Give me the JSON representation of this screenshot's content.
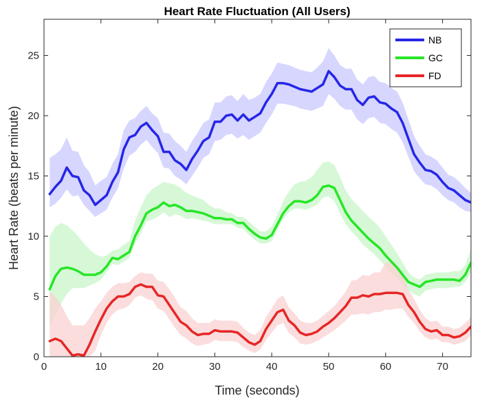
{
  "chart_data": {
    "type": "line",
    "title": "Heart Rate Fluctuation (All Users)",
    "xlabel": "Time (seconds)",
    "ylabel": "Heart Rate (beats per minute)",
    "xlim": [
      0,
      75
    ],
    "ylim": [
      0,
      28
    ],
    "xticks": [
      0,
      10,
      20,
      30,
      40,
      50,
      60,
      70
    ],
    "yticks": [
      0,
      5,
      10,
      15,
      20,
      25
    ],
    "grid": false,
    "legend_position": "top-right",
    "x": [
      1,
      2,
      3,
      4,
      5,
      6,
      7,
      8,
      9,
      10,
      11,
      12,
      13,
      14,
      15,
      16,
      17,
      18,
      19,
      20,
      21,
      22,
      23,
      24,
      25,
      26,
      27,
      28,
      29,
      30,
      31,
      32,
      33,
      34,
      35,
      36,
      37,
      38,
      39,
      40,
      41,
      42,
      43,
      44,
      45,
      46,
      47,
      48,
      49,
      50,
      51,
      52,
      53,
      54,
      55,
      56,
      57,
      58,
      59,
      60,
      61,
      62,
      63,
      64,
      65,
      66,
      67,
      68,
      69,
      70,
      71,
      72,
      73,
      74,
      75
    ],
    "series": [
      {
        "name": "NB",
        "color": "#2626e6",
        "band_color": "#c8c8ff",
        "values": [
          13.5,
          14.1,
          14.6,
          15.7,
          15.0,
          14.9,
          13.8,
          13.4,
          12.6,
          13.0,
          13.4,
          14.5,
          15.3,
          17.2,
          18.2,
          18.4,
          19.1,
          19.4,
          18.8,
          18.3,
          17.0,
          17.0,
          16.3,
          16.0,
          15.5,
          16.4,
          17.1,
          17.9,
          18.2,
          19.5,
          19.5,
          20.0,
          20.1,
          19.6,
          20.1,
          19.6,
          19.9,
          20.2,
          21.1,
          21.8,
          22.7,
          22.7,
          22.6,
          22.4,
          22.2,
          22.1,
          22.0,
          22.3,
          22.6,
          23.7,
          23.2,
          22.5,
          22.2,
          22.2,
          21.3,
          20.9,
          21.5,
          21.6,
          21.1,
          21.0,
          20.6,
          20.3,
          19.4,
          18.1,
          16.8,
          16.1,
          15.5,
          15.4,
          15.1,
          14.5,
          14.0,
          13.8,
          13.4,
          13.0,
          12.8
        ],
        "lower": [
          12.4,
          12.7,
          13.2,
          13.9,
          13.3,
          13.4,
          12.6,
          12.1,
          11.6,
          11.9,
          12.2,
          13.2,
          14.0,
          15.6,
          16.7,
          17.0,
          17.6,
          18.0,
          17.4,
          16.9,
          15.7,
          15.6,
          15.0,
          14.7,
          14.3,
          15.0,
          15.7,
          16.5,
          16.8,
          17.9,
          18.0,
          18.4,
          18.5,
          18.1,
          18.4,
          18.0,
          18.3,
          18.6,
          19.4,
          20.1,
          21.0,
          21.0,
          20.9,
          20.8,
          20.6,
          20.5,
          20.4,
          20.6,
          20.8,
          21.8,
          21.4,
          20.8,
          20.5,
          20.5,
          19.7,
          19.3,
          19.8,
          19.9,
          19.4,
          19.3,
          18.9,
          18.6,
          17.8,
          16.6,
          15.4,
          14.8,
          14.3,
          14.2,
          13.9,
          13.4,
          13.0,
          12.8,
          12.4,
          12.1,
          12.0
        ],
        "upper": [
          16.5,
          16.8,
          17.2,
          18.2,
          17.1,
          17.0,
          15.9,
          15.3,
          14.2,
          14.6,
          14.9,
          16.0,
          16.8,
          18.8,
          19.6,
          19.8,
          20.4,
          20.8,
          20.2,
          19.8,
          18.6,
          18.5,
          17.9,
          17.5,
          17.0,
          17.9,
          18.6,
          19.4,
          19.7,
          21.1,
          21.1,
          21.6,
          21.7,
          21.2,
          21.8,
          21.3,
          21.5,
          21.8,
          22.8,
          23.5,
          24.4,
          24.3,
          24.2,
          24.0,
          23.8,
          23.7,
          23.6,
          24.0,
          24.5,
          25.6,
          25.0,
          24.2,
          23.9,
          23.9,
          23.0,
          22.6,
          23.2,
          23.3,
          22.8,
          22.7,
          22.3,
          22.0,
          21.1,
          19.7,
          18.3,
          17.5,
          16.8,
          16.6,
          16.3,
          15.7,
          15.1,
          14.9,
          14.5,
          14.0,
          13.6
        ]
      },
      {
        "name": "GC",
        "color": "#26e626",
        "band_color": "#c8f5c8",
        "values": [
          5.6,
          6.7,
          7.3,
          7.4,
          7.3,
          7.1,
          6.8,
          6.8,
          6.8,
          7.0,
          7.5,
          8.2,
          8.1,
          8.4,
          8.7,
          10.0,
          10.9,
          11.9,
          12.2,
          12.4,
          12.8,
          12.5,
          12.6,
          12.4,
          12.1,
          12.1,
          12.0,
          11.9,
          11.7,
          11.5,
          11.5,
          11.4,
          11.4,
          11.1,
          11.1,
          10.6,
          10.2,
          9.9,
          9.8,
          10.1,
          11.0,
          11.9,
          12.5,
          12.9,
          12.9,
          12.8,
          13.0,
          13.4,
          14.1,
          14.2,
          14.0,
          13.0,
          12.0,
          11.3,
          10.8,
          10.3,
          9.8,
          9.4,
          9.0,
          8.4,
          7.9,
          7.4,
          6.8,
          6.2,
          6.0,
          5.8,
          6.2,
          6.3,
          6.4,
          6.4,
          6.4,
          6.4,
          6.3,
          6.8,
          7.8
        ],
        "lower": [
          2.5,
          3.4,
          4.4,
          5.2,
          5.7,
          5.7,
          5.7,
          5.9,
          6.1,
          6.4,
          7.0,
          7.7,
          7.6,
          7.9,
          8.2,
          9.4,
          10.2,
          11.2,
          11.4,
          11.6,
          12.0,
          11.6,
          11.8,
          11.7,
          11.4,
          11.5,
          11.4,
          11.3,
          11.2,
          11.0,
          11.0,
          11.0,
          11.0,
          10.7,
          10.6,
          10.1,
          9.7,
          9.4,
          9.4,
          9.6,
          10.5,
          11.4,
          12.0,
          12.3,
          12.3,
          12.2,
          12.4,
          12.6,
          13.2,
          13.3,
          12.9,
          11.9,
          11.0,
          10.4,
          9.9,
          9.3,
          8.9,
          8.5,
          8.0,
          7.5,
          6.9,
          6.5,
          6.0,
          5.5,
          5.2,
          5.0,
          5.5,
          5.6,
          5.7,
          5.7,
          5.7,
          5.8,
          5.8,
          6.2,
          7.0
        ],
        "upper": [
          10.0,
          10.8,
          11.1,
          10.9,
          10.5,
          10.0,
          9.4,
          8.9,
          8.5,
          8.3,
          8.4,
          8.8,
          8.9,
          9.3,
          9.6,
          11.3,
          12.4,
          13.4,
          13.9,
          14.2,
          14.5,
          14.4,
          14.3,
          14.0,
          13.6,
          13.4,
          13.2,
          13.0,
          12.6,
          12.3,
          12.3,
          12.0,
          11.9,
          11.6,
          11.6,
          11.2,
          10.8,
          10.4,
          10.4,
          10.8,
          11.8,
          12.9,
          13.7,
          14.3,
          14.5,
          14.6,
          14.9,
          15.5,
          16.1,
          16.2,
          15.9,
          14.9,
          13.8,
          13.1,
          12.6,
          12.1,
          11.6,
          11.2,
          10.7,
          10.0,
          9.3,
          8.6,
          7.8,
          7.0,
          6.6,
          6.4,
          6.8,
          6.9,
          7.0,
          7.0,
          7.0,
          7.1,
          7.1,
          7.6,
          9.0
        ]
      },
      {
        "name": "FD",
        "color": "#e62626",
        "band_color": "#fad2d2",
        "values": [
          1.3,
          1.5,
          1.3,
          0.7,
          0.1,
          0.2,
          0.1,
          1.0,
          2.1,
          3.1,
          4.0,
          4.6,
          5.0,
          5.0,
          5.2,
          5.8,
          6.0,
          5.8,
          5.8,
          5.1,
          5.0,
          4.3,
          3.6,
          2.9,
          2.6,
          2.1,
          1.8,
          1.9,
          1.9,
          2.2,
          2.1,
          2.1,
          2.1,
          2.0,
          1.6,
          1.2,
          1.0,
          1.3,
          2.3,
          3.0,
          3.7,
          3.9,
          3.0,
          2.6,
          2.0,
          1.8,
          1.9,
          2.1,
          2.5,
          2.8,
          3.2,
          3.7,
          4.2,
          4.9,
          4.9,
          5.1,
          5.0,
          5.2,
          5.2,
          5.3,
          5.3,
          5.3,
          5.2,
          4.3,
          3.7,
          2.9,
          2.3,
          2.1,
          2.2,
          1.8,
          1.8,
          1.6,
          1.7,
          2.0,
          2.5
        ],
        "lower": [
          0.0,
          0.0,
          0.0,
          0.0,
          0.0,
          0.0,
          0.0,
          0.0,
          0.5,
          1.8,
          2.8,
          3.5,
          3.9,
          4.0,
          4.3,
          4.9,
          5.1,
          4.8,
          4.7,
          4.0,
          3.8,
          3.1,
          2.4,
          1.8,
          1.5,
          1.1,
          0.9,
          1.0,
          1.1,
          1.4,
          1.3,
          1.3,
          1.3,
          1.2,
          0.8,
          0.5,
          0.3,
          0.6,
          1.4,
          2.0,
          2.6,
          2.8,
          2.0,
          1.6,
          1.1,
          1.0,
          1.1,
          1.3,
          1.6,
          1.9,
          2.2,
          2.6,
          3.0,
          3.5,
          3.5,
          3.6,
          3.5,
          3.7,
          3.7,
          3.9,
          3.9,
          4.0,
          4.0,
          3.3,
          2.8,
          2.1,
          1.6,
          1.4,
          1.5,
          1.2,
          1.2,
          1.0,
          1.1,
          1.3,
          1.8
        ],
        "upper": [
          5.4,
          5.0,
          4.3,
          3.4,
          2.6,
          2.6,
          2.6,
          3.2,
          4.0,
          4.6,
          5.3,
          5.8,
          6.1,
          6.1,
          6.2,
          6.7,
          7.0,
          6.9,
          6.9,
          6.3,
          6.2,
          5.6,
          4.9,
          4.1,
          3.8,
          3.2,
          2.8,
          2.8,
          2.8,
          3.1,
          3.0,
          3.0,
          3.0,
          2.9,
          2.4,
          2.0,
          1.8,
          2.2,
          3.3,
          4.0,
          4.8,
          5.1,
          4.1,
          3.6,
          3.0,
          2.8,
          2.8,
          3.0,
          3.4,
          3.8,
          4.2,
          4.8,
          5.4,
          6.3,
          6.4,
          6.8,
          6.7,
          7.0,
          7.0,
          7.8,
          7.8,
          7.3,
          6.9,
          5.6,
          4.8,
          3.9,
          3.2,
          2.9,
          3.0,
          2.5,
          2.5,
          2.3,
          2.4,
          2.8,
          3.3
        ]
      }
    ]
  }
}
